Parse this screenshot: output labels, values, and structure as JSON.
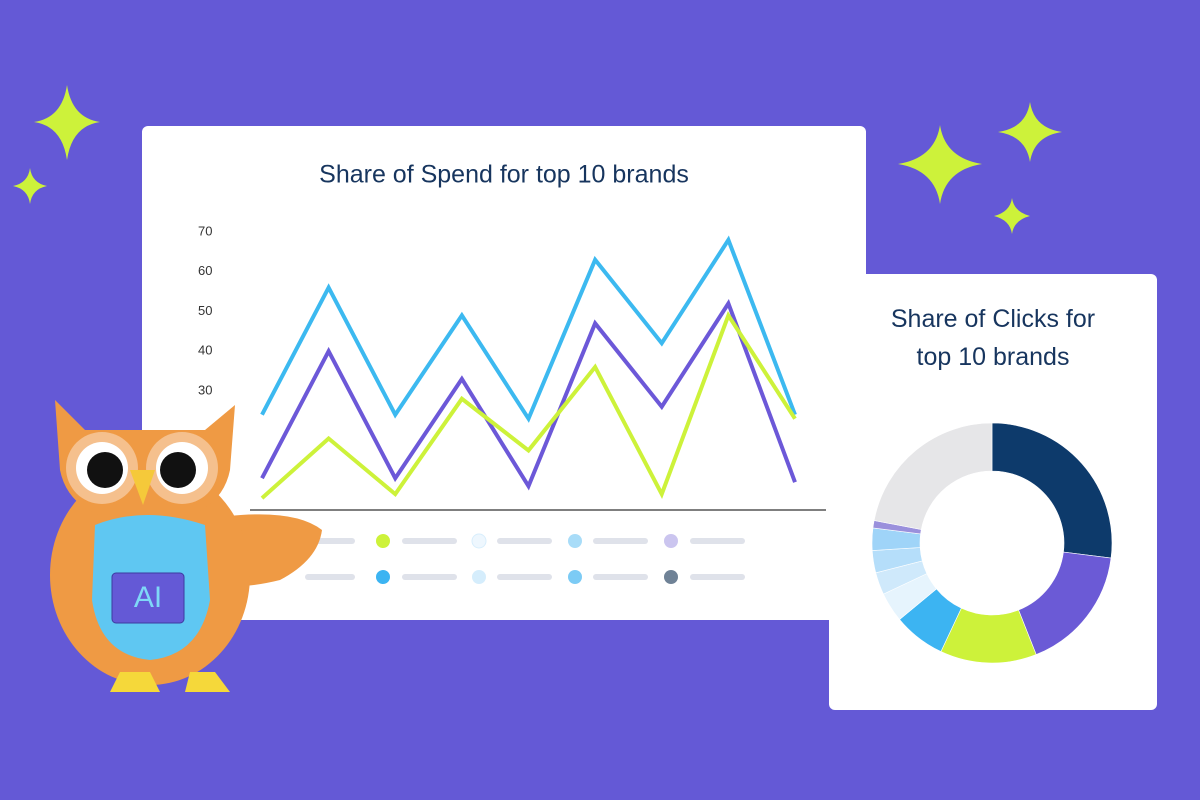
{
  "chart_data": [
    {
      "type": "line",
      "title": "Share of Spend for top 10 brands",
      "categories": [
        null,
        null,
        null,
        null,
        null,
        null,
        null,
        null,
        null
      ],
      "series": [
        {
          "color": "#3cb9f0",
          "values": [
            24,
            56,
            24,
            49,
            23,
            63,
            42,
            68,
            24
          ]
        },
        {
          "color": "#6c58d8",
          "values": [
            8,
            40,
            8,
            33,
            6,
            47,
            26,
            52,
            7
          ]
        },
        {
          "color": "#cdf23a",
          "values": [
            3,
            18,
            4,
            28,
            15,
            36,
            4,
            49,
            23
          ]
        }
      ],
      "ylim": [
        0,
        70
      ],
      "yticks": [
        30,
        40,
        50,
        60,
        70
      ]
    },
    {
      "type": "pie",
      "title": "Share of Clicks for top 10 brands",
      "donut": true,
      "categories": [
        null,
        null,
        null,
        null,
        null,
        null,
        null,
        null,
        null,
        null
      ],
      "values": [
        27,
        17,
        13,
        7,
        4,
        3,
        3,
        3,
        1,
        22
      ],
      "colors": [
        "#0d3a6b",
        "#6b5ad6",
        "#cdf23a",
        "#3cb4f2",
        "#e6f4fd",
        "#cfe9fb",
        "#b5defa",
        "#9fd4f8",
        "#9a90dc",
        "#e6e6e8"
      ]
    }
  ],
  "mascot": {
    "badge": "AI"
  }
}
